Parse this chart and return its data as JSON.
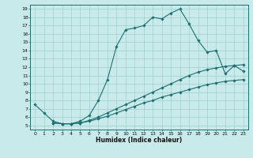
{
  "xlabel": "Humidex (Indice chaleur)",
  "bg_color": "#c8eaea",
  "grid_color": "#9ecece",
  "line_color": "#1a7070",
  "xlim": [
    -0.5,
    23.5
  ],
  "ylim": [
    4.5,
    19.5
  ],
  "yticks": [
    5,
    6,
    7,
    8,
    9,
    10,
    11,
    12,
    13,
    14,
    15,
    16,
    17,
    18,
    19
  ],
  "xticks": [
    0,
    1,
    2,
    3,
    4,
    5,
    6,
    7,
    8,
    9,
    10,
    11,
    12,
    13,
    14,
    15,
    16,
    17,
    18,
    19,
    20,
    21,
    22,
    23
  ],
  "line1_x": [
    0,
    1,
    2,
    3,
    4,
    5,
    6,
    7,
    8,
    9,
    10,
    11,
    12,
    13,
    14,
    15,
    16,
    17,
    18,
    19,
    20,
    21,
    22,
    23
  ],
  "line1_y": [
    7.5,
    6.5,
    5.5,
    5.2,
    5.2,
    5.5,
    6.2,
    8.0,
    10.5,
    14.5,
    16.5,
    16.7,
    17.0,
    18.0,
    17.8,
    18.5,
    19.0,
    17.2,
    15.2,
    13.8,
    14.0,
    11.2,
    12.2,
    11.5
  ],
  "line2_x": [
    2,
    3,
    4,
    5,
    6,
    7,
    8,
    9,
    10,
    11,
    12,
    13,
    14,
    15,
    16,
    17,
    18,
    19,
    20,
    21,
    22,
    23
  ],
  "line2_y": [
    5.3,
    5.2,
    5.2,
    5.3,
    5.6,
    6.0,
    6.5,
    7.0,
    7.5,
    8.0,
    8.5,
    9.0,
    9.5,
    10.0,
    10.5,
    11.0,
    11.4,
    11.7,
    11.9,
    12.1,
    12.2,
    12.3
  ],
  "line3_x": [
    2,
    3,
    4,
    5,
    6,
    7,
    8,
    9,
    10,
    11,
    12,
    13,
    14,
    15,
    16,
    17,
    18,
    19,
    20,
    21,
    22,
    23
  ],
  "line3_y": [
    5.3,
    5.2,
    5.2,
    5.3,
    5.5,
    5.8,
    6.1,
    6.5,
    6.9,
    7.3,
    7.7,
    8.0,
    8.4,
    8.7,
    9.0,
    9.3,
    9.6,
    9.9,
    10.1,
    10.3,
    10.4,
    10.5
  ]
}
